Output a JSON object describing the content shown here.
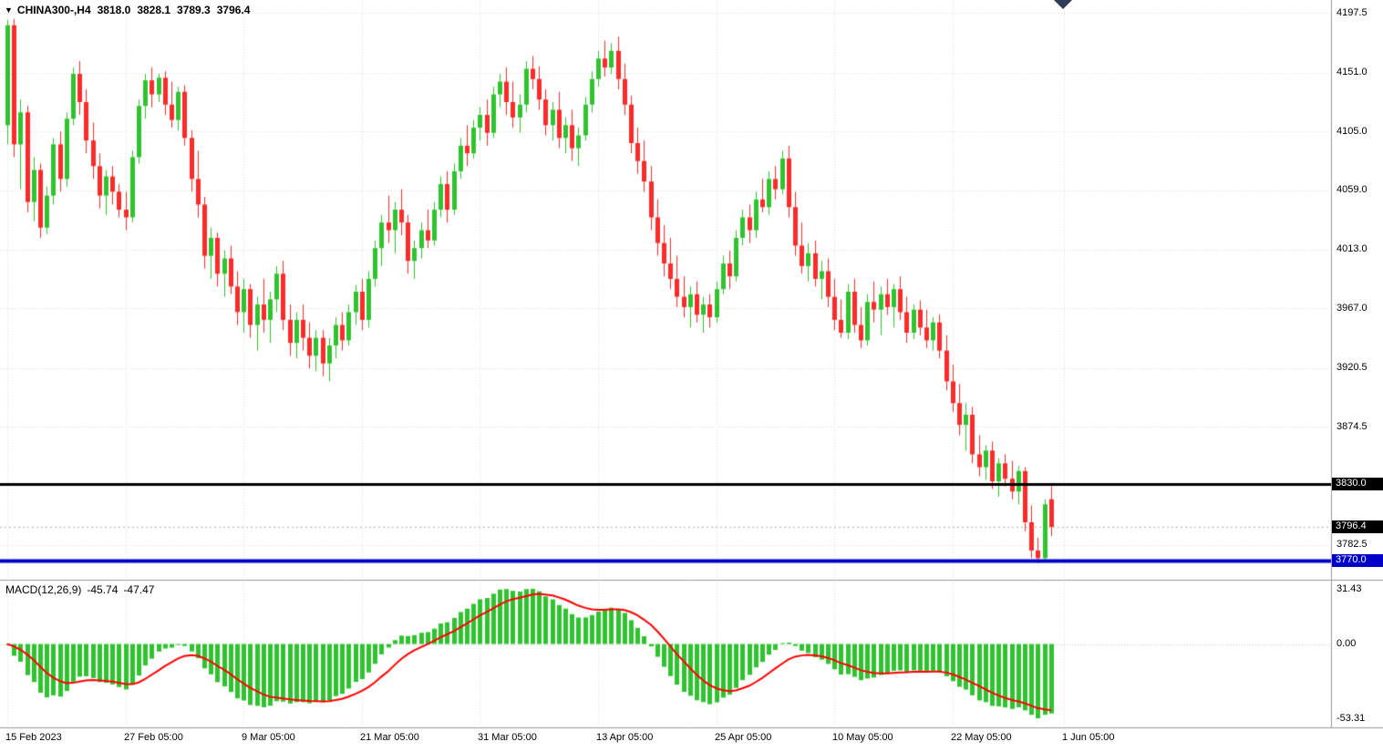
{
  "info": {
    "symbol_period": "CHINA300-,H4",
    "open": "3818.0",
    "high": "3828.1",
    "low": "3789.3",
    "close": "3796.4"
  },
  "colors": {
    "up": "#2fc42f",
    "down": "#ff2a2a",
    "macd_hist": "#2fc42f",
    "signal": "#ff0000",
    "grid": "#dcdcdc",
    "zero_line": "#c8c8c8",
    "price_line": "#b4b4b4",
    "separator": "#9a9a9a",
    "axis_text": "#000000",
    "hline_black": "#000000",
    "hline_blue": "#0000c8",
    "badge_black_bg": "#000000",
    "badge_blue_bg": "#0000c8"
  },
  "chart_data": {
    "type": "candlestick",
    "title": "CHINA300- H4 candlestick chart with MACD indicator",
    "symbol": "CHINA300-",
    "timeframe": "H4",
    "current_price": 3796.4,
    "price_range": [
      3756,
      4202
    ],
    "grid": "dotted",
    "legend_position": "none",
    "price_ticks": [
      "4197.5",
      "4151.0",
      "4105.0",
      "4059.0",
      "4013.0",
      "3967.0",
      "3920.5",
      "3874.5",
      "3782.5"
    ],
    "axis_badges": [
      {
        "label": "3830.0",
        "price": 3830.0,
        "bg": "#000000"
      },
      {
        "label": "3796.4",
        "price": 3796.4,
        "bg": "#000000"
      },
      {
        "label": "3770.0",
        "price": 3770.0,
        "bg": "#0000c8"
      }
    ],
    "hlines": [
      {
        "price": 3830.0,
        "color": "#000000",
        "width": 3
      },
      {
        "price": 3770.0,
        "color": "#0000c8",
        "width": 4
      }
    ],
    "x_ticks": [
      {
        "label": "15 Feb 2023",
        "bar": 0
      },
      {
        "label": "27 Feb 05:00",
        "bar": 18
      },
      {
        "label": "9 Mar 05:00",
        "bar": 36
      },
      {
        "label": "21 Mar 05:00",
        "bar": 54
      },
      {
        "label": "31 Mar 05:00",
        "bar": 72
      },
      {
        "label": "13 Apr 05:00",
        "bar": 90
      },
      {
        "label": "25 Apr 05:00",
        "bar": 108
      },
      {
        "label": "10 May 05:00",
        "bar": 126
      },
      {
        "label": "22 May 05:00",
        "bar": 144
      },
      {
        "label": "1 Jun 05:00",
        "bar": 161
      }
    ],
    "macd": {
      "label": "MACD(12,26,9)",
      "main_value": "-45.74",
      "signal_value": "-47.47",
      "fast": 12,
      "slow": 26,
      "smoothing": 9,
      "ticks": [
        "31.43",
        "0.00",
        "-53.31"
      ],
      "range": [
        -53.31,
        31.43
      ]
    },
    "candles": [
      [
        4110,
        4192,
        4095,
        4188
      ],
      [
        4188,
        4193,
        4085,
        4095
      ],
      [
        4095,
        4130,
        4060,
        4120
      ],
      [
        4120,
        4125,
        4042,
        4050
      ],
      [
        4050,
        4085,
        4035,
        4075
      ],
      [
        4075,
        4080,
        4022,
        4030
      ],
      [
        4030,
        4062,
        4025,
        4055
      ],
      [
        4055,
        4100,
        4048,
        4095
      ],
      [
        4095,
        4105,
        4058,
        4068
      ],
      [
        4068,
        4120,
        4062,
        4115
      ],
      [
        4115,
        4155,
        4110,
        4150
      ],
      [
        4150,
        4160,
        4118,
        4128
      ],
      [
        4128,
        4138,
        4088,
        4098
      ],
      [
        4098,
        4112,
        4068,
        4078
      ],
      [
        4078,
        4088,
        4045,
        4055
      ],
      [
        4055,
        4075,
        4040,
        4070
      ],
      [
        4070,
        4078,
        4048,
        4058
      ],
      [
        4058,
        4064,
        4038,
        4044
      ],
      [
        4044,
        4058,
        4028,
        4038
      ],
      [
        4038,
        4090,
        4034,
        4085
      ],
      [
        4085,
        4130,
        4080,
        4125
      ],
      [
        4125,
        4150,
        4115,
        4145
      ],
      [
        4145,
        4155,
        4124,
        4134
      ],
      [
        4134,
        4150,
        4128,
        4147
      ],
      [
        4147,
        4152,
        4118,
        4126
      ],
      [
        4126,
        4144,
        4108,
        4114
      ],
      [
        4114,
        4140,
        4106,
        4136
      ],
      [
        4136,
        4141,
        4094,
        4100
      ],
      [
        4100,
        4106,
        4058,
        4068
      ],
      [
        4068,
        4090,
        4038,
        4048
      ],
      [
        4048,
        4054,
        3998,
        4008
      ],
      [
        4008,
        4030,
        3990,
        4022
      ],
      [
        4022,
        4026,
        3984,
        3994
      ],
      [
        3994,
        4012,
        3976,
        4006
      ],
      [
        4006,
        4016,
        3978,
        3984
      ],
      [
        3984,
        3996,
        3954,
        3964
      ],
      [
        3964,
        3990,
        3948,
        3982
      ],
      [
        3982,
        3986,
        3944,
        3954
      ],
      [
        3954,
        3976,
        3934,
        3970
      ],
      [
        3970,
        3990,
        3948,
        3958
      ],
      [
        3958,
        3980,
        3940,
        3974
      ],
      [
        3974,
        4000,
        3964,
        3994
      ],
      [
        3994,
        4004,
        3950,
        3958
      ],
      [
        3958,
        3970,
        3930,
        3940
      ],
      [
        3940,
        3964,
        3928,
        3958
      ],
      [
        3958,
        3970,
        3934,
        3944
      ],
      [
        3944,
        3956,
        3920,
        3930
      ],
      [
        3930,
        3950,
        3918,
        3944
      ],
      [
        3944,
        3950,
        3914,
        3924
      ],
      [
        3924,
        3944,
        3910,
        3938
      ],
      [
        3938,
        3960,
        3928,
        3954
      ],
      [
        3954,
        3964,
        3934,
        3942
      ],
      [
        3942,
        3970,
        3938,
        3964
      ],
      [
        3964,
        3985,
        3954,
        3980
      ],
      [
        3980,
        3990,
        3950,
        3958
      ],
      [
        3958,
        3996,
        3952,
        3990
      ],
      [
        3990,
        4020,
        3984,
        4014
      ],
      [
        4014,
        4040,
        4000,
        4034
      ],
      [
        4034,
        4055,
        4018,
        4028
      ],
      [
        4028,
        4050,
        4010,
        4044
      ],
      [
        4044,
        4060,
        4024,
        4034
      ],
      [
        4034,
        4040,
        3994,
        4004
      ],
      [
        4004,
        4020,
        3990,
        4014
      ],
      [
        4014,
        4034,
        4006,
        4028
      ],
      [
        4028,
        4044,
        4014,
        4020
      ],
      [
        4020,
        4050,
        4016,
        4044
      ],
      [
        4044,
        4070,
        4038,
        4064
      ],
      [
        4064,
        4074,
        4034,
        4044
      ],
      [
        4044,
        4080,
        4040,
        4074
      ],
      [
        4074,
        4100,
        4068,
        4094
      ],
      [
        4094,
        4110,
        4078,
        4088
      ],
      [
        4088,
        4114,
        4084,
        4108
      ],
      [
        4108,
        4124,
        4098,
        4118
      ],
      [
        4118,
        4130,
        4094,
        4104
      ],
      [
        4104,
        4140,
        4100,
        4134
      ],
      [
        4134,
        4150,
        4124,
        4144
      ],
      [
        4144,
        4155,
        4118,
        4128
      ],
      [
        4128,
        4144,
        4108,
        4116
      ],
      [
        4116,
        4134,
        4104,
        4126
      ],
      [
        4126,
        4160,
        4120,
        4154
      ],
      [
        4154,
        4164,
        4138,
        4146
      ],
      [
        4146,
        4156,
        4122,
        4130
      ],
      [
        4130,
        4138,
        4102,
        4110
      ],
      [
        4110,
        4128,
        4098,
        4122
      ],
      [
        4122,
        4136,
        4092,
        4100
      ],
      [
        4100,
        4116,
        4088,
        4110
      ],
      [
        4110,
        4122,
        4082,
        4092
      ],
      [
        4092,
        4108,
        4078,
        4102
      ],
      [
        4102,
        4132,
        4098,
        4126
      ],
      [
        4126,
        4152,
        4120,
        4146
      ],
      [
        4146,
        4168,
        4140,
        4162
      ],
      [
        4162,
        4176,
        4148,
        4155
      ],
      [
        4155,
        4174,
        4150,
        4168
      ],
      [
        4168,
        4179,
        4138,
        4146
      ],
      [
        4146,
        4158,
        4118,
        4126
      ],
      [
        4126,
        4133,
        4088,
        4096
      ],
      [
        4096,
        4108,
        4072,
        4082
      ],
      [
        4082,
        4098,
        4058,
        4066
      ],
      [
        4066,
        4078,
        4028,
        4038
      ],
      [
        4038,
        4052,
        4008,
        4018
      ],
      [
        4018,
        4032,
        3992,
        4002
      ],
      [
        4002,
        4022,
        3982,
        3990
      ],
      [
        3990,
        4008,
        3968,
        3976
      ],
      [
        3976,
        3992,
        3960,
        3968
      ],
      [
        3968,
        3984,
        3952,
        3978
      ],
      [
        3978,
        3988,
        3956,
        3962
      ],
      [
        3962,
        3976,
        3948,
        3970
      ],
      [
        3970,
        3978,
        3952,
        3960
      ],
      [
        3960,
        3988,
        3956,
        3982
      ],
      [
        3982,
        4008,
        3978,
        4002
      ],
      [
        4002,
        4012,
        3982,
        3992
      ],
      [
        3992,
        4028,
        3988,
        4022
      ],
      [
        4022,
        4044,
        4016,
        4038
      ],
      [
        4038,
        4048,
        4018,
        4028
      ],
      [
        4028,
        4058,
        4022,
        4052
      ],
      [
        4052,
        4068,
        4042,
        4046
      ],
      [
        4046,
        4074,
        4040,
        4068
      ],
      [
        4068,
        4078,
        4052,
        4060
      ],
      [
        4060,
        4090,
        4056,
        4084
      ],
      [
        4084,
        4094,
        4038,
        4046
      ],
      [
        4046,
        4058,
        4008,
        4016
      ],
      [
        4016,
        4034,
        3994,
        4000
      ],
      [
        4000,
        4018,
        3988,
        4010
      ],
      [
        4010,
        4020,
        3984,
        3990
      ],
      [
        3990,
        4004,
        3974,
        3996
      ],
      [
        3996,
        4006,
        3968,
        3976
      ],
      [
        3976,
        3990,
        3950,
        3958
      ],
      [
        3958,
        3974,
        3944,
        3948
      ],
      [
        3948,
        3986,
        3943,
        3980
      ],
      [
        3980,
        3990,
        3948,
        3954
      ],
      [
        3954,
        3968,
        3936,
        3942
      ],
      [
        3942,
        3978,
        3938,
        3972
      ],
      [
        3972,
        3988,
        3956,
        3966
      ],
      [
        3966,
        3984,
        3946,
        3978
      ],
      [
        3978,
        3990,
        3962,
        3968
      ],
      [
        3968,
        3986,
        3952,
        3982
      ],
      [
        3982,
        3992,
        3958,
        3964
      ],
      [
        3964,
        3976,
        3940,
        3948
      ],
      [
        3948,
        3970,
        3943,
        3966
      ],
      [
        3966,
        3973,
        3946,
        3952
      ],
      [
        3952,
        3966,
        3936,
        3942
      ],
      [
        3942,
        3960,
        3934,
        3956
      ],
      [
        3956,
        3962,
        3928,
        3934
      ],
      [
        3934,
        3946,
        3903,
        3910
      ],
      [
        3910,
        3923,
        3886,
        3893
      ],
      [
        3893,
        3908,
        3868,
        3876
      ],
      [
        3876,
        3893,
        3856,
        3884
      ],
      [
        3884,
        3890,
        3846,
        3853
      ],
      [
        3853,
        3868,
        3836,
        3843
      ],
      [
        3843,
        3860,
        3833,
        3856
      ],
      [
        3856,
        3863,
        3826,
        3832
      ],
      [
        3832,
        3850,
        3820,
        3846
      ],
      [
        3846,
        3853,
        3828,
        3834
      ],
      [
        3834,
        3848,
        3818,
        3824
      ],
      [
        3824,
        3844,
        3814,
        3840
      ],
      [
        3840,
        3843,
        3793,
        3800
      ],
      [
        3800,
        3813,
        3772,
        3778
      ],
      [
        3778,
        3788,
        3768,
        3772
      ],
      [
        3772,
        3818,
        3769,
        3814
      ],
      [
        3818,
        3828.1,
        3789.3,
        3796.4
      ]
    ]
  }
}
